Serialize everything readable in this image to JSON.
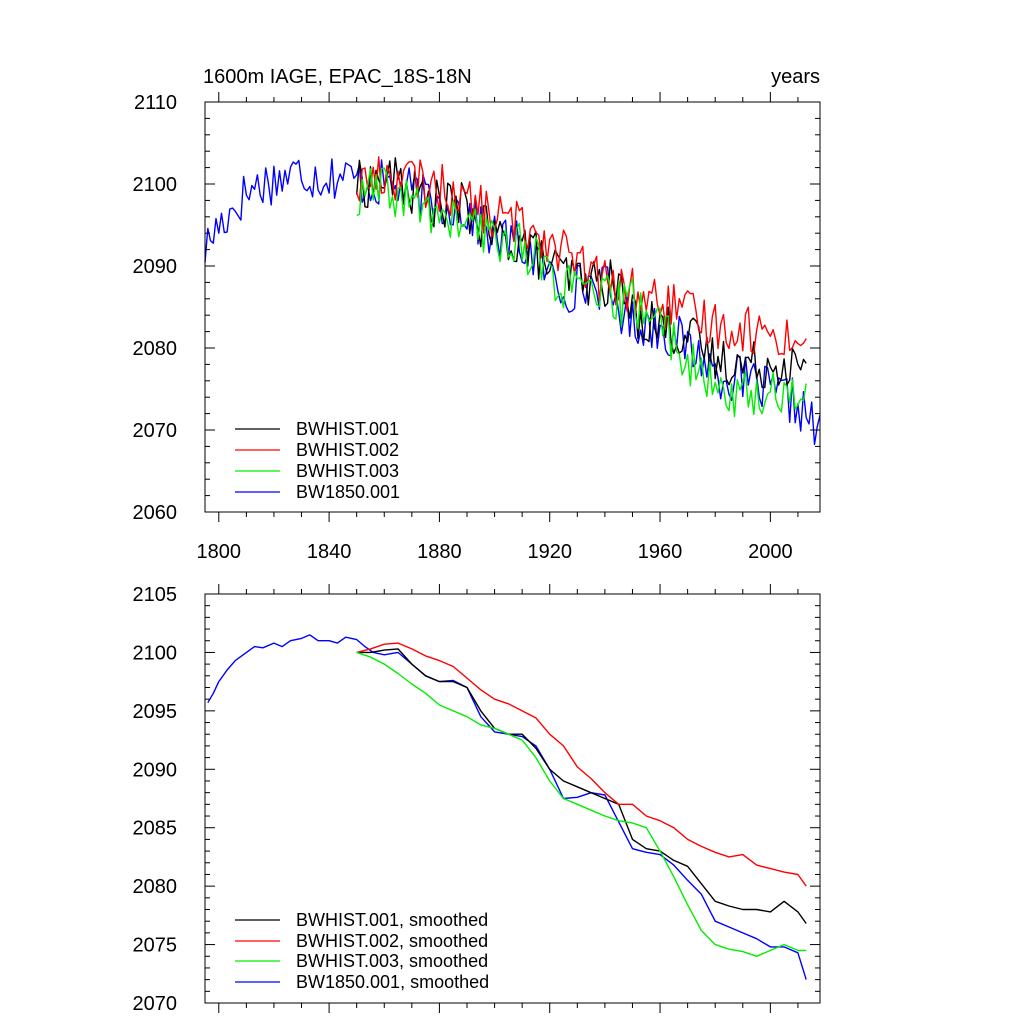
{
  "chart_data": [
    {
      "type": "line",
      "title_left": "1600m IAGE, EPAC_18S-18N",
      "title_right": "years",
      "xlim": [
        1795,
        2018
      ],
      "ylim": [
        2060,
        2110
      ],
      "xticks": [
        1800,
        1840,
        1880,
        1920,
        1960,
        2000
      ],
      "yticks": [
        2060,
        2070,
        2080,
        2090,
        2100,
        2110
      ],
      "legend_position": "lower-left",
      "series": [
        {
          "name": "BW1850.001",
          "color": "#0000ff",
          "x": [
            1795,
            1798,
            1800,
            1805,
            1810,
            1815,
            1820,
            1825,
            1830,
            1835,
            1840,
            1845,
            1850,
            1855,
            1860,
            1865,
            1870,
            1875,
            1880,
            1885,
            1890,
            1895,
            1900,
            1905,
            1910,
            1915,
            1920,
            1925,
            1930,
            1935,
            1940,
            1945,
            1950,
            1955,
            1960,
            1965,
            1970,
            1975,
            1980,
            1985,
            1990,
            1995,
            2000,
            2005,
            2010,
            2015,
            2018
          ],
          "y": [
            2092,
            2094,
            2095,
            2097,
            2099,
            2100,
            2100.5,
            2101,
            2101.5,
            2101,
            2101,
            2101,
            2100.5,
            2100,
            2100,
            2099.5,
            2099,
            2098,
            2097.5,
            2097.5,
            2096.5,
            2095,
            2093.5,
            2093,
            2092.5,
            2091,
            2089,
            2087,
            2087.5,
            2088,
            2087.5,
            2085,
            2083,
            2083,
            2082.5,
            2081.5,
            2080,
            2079,
            2077,
            2076.5,
            2076,
            2075.5,
            2074.5,
            2074,
            2073,
            2071,
            2069
          ]
        },
        {
          "name": "BWHIST.001",
          "color": "#000000",
          "x": [
            1850,
            1855,
            1860,
            1865,
            1870,
            1875,
            1880,
            1885,
            1890,
            1895,
            1900,
            1905,
            1910,
            1915,
            1920,
            1925,
            1930,
            1935,
            1940,
            1945,
            1950,
            1955,
            1960,
            1965,
            1970,
            1975,
            1980,
            1985,
            1990,
            1995,
            2000,
            2005,
            2010,
            2013
          ],
          "y": [
            2100,
            2100,
            2100.5,
            2100.5,
            2099,
            2098,
            2097.5,
            2097.5,
            2097,
            2095,
            2093.5,
            2093,
            2093,
            2091.5,
            2090,
            2089,
            2088.5,
            2088,
            2088,
            2087.5,
            2084,
            2083.5,
            2083,
            2082,
            2081.5,
            2080,
            2078.5,
            2078.5,
            2078,
            2078,
            2078,
            2078.5,
            2077.5,
            2076.5
          ]
        },
        {
          "name": "BWHIST.002",
          "color": "#ff0000",
          "x": [
            1850,
            1855,
            1860,
            1865,
            1870,
            1875,
            1880,
            1885,
            1890,
            1895,
            1900,
            1905,
            1910,
            1915,
            1920,
            1925,
            1930,
            1935,
            1940,
            1945,
            1950,
            1955,
            1960,
            1965,
            1970,
            1975,
            1980,
            1985,
            1990,
            1995,
            2000,
            2005,
            2010,
            2013
          ],
          "y": [
            2100,
            2100.5,
            2101,
            2101,
            2100.5,
            2100,
            2099.5,
            2099,
            2098,
            2097,
            2096,
            2095.5,
            2095,
            2094.5,
            2093,
            2092,
            2090,
            2089,
            2088,
            2087,
            2087,
            2086,
            2085.5,
            2085,
            2084,
            2083.5,
            2083,
            2082.5,
            2082.5,
            2082,
            2081.5,
            2081.5,
            2081,
            2080
          ]
        },
        {
          "name": "BWHIST.003",
          "color": "#00ee00",
          "x": [
            1850,
            1855,
            1860,
            1865,
            1870,
            1875,
            1880,
            1885,
            1890,
            1895,
            1900,
            1905,
            1910,
            1915,
            1920,
            1925,
            1930,
            1935,
            1940,
            1945,
            1950,
            1955,
            1960,
            1965,
            1970,
            1975,
            1980,
            1985,
            1990,
            1995,
            2000,
            2005,
            2010,
            2013
          ],
          "y": [
            2097,
            2099.5,
            2099,
            2098.5,
            2097.5,
            2097,
            2096,
            2095.5,
            2095,
            2094,
            2093.5,
            2093,
            2092.5,
            2091,
            2089,
            2087.5,
            2087,
            2086.5,
            2086,
            2085.5,
            2085.5,
            2085,
            2083,
            2081,
            2078.5,
            2076,
            2075,
            2074.5,
            2074.5,
            2074,
            2074.5,
            2074.5,
            2074.5,
            2075
          ]
        }
      ],
      "jitter_note_amplitude": 3,
      "legend_entries": [
        "BWHIST.001",
        "BWHIST.002",
        "BWHIST.003",
        "BW1850.001"
      ]
    },
    {
      "type": "line",
      "xlim": [
        1795,
        2018
      ],
      "ylim": [
        2070,
        2105
      ],
      "xticks": [
        1800,
        1840,
        1880,
        1920,
        1960,
        2000
      ],
      "yticks": [
        2070,
        2075,
        2080,
        2085,
        2090,
        2095,
        2100,
        2105
      ],
      "legend_position": "lower-left",
      "series": [
        {
          "name": "BW1850.001, smoothed",
          "color": "#0000ff",
          "x": [
            1796,
            1798,
            1800,
            1803,
            1806,
            1810,
            1813,
            1816,
            1820,
            1823,
            1826,
            1830,
            1833,
            1836,
            1840,
            1843,
            1846,
            1850,
            1853,
            1856,
            1860,
            1865,
            1870,
            1875,
            1880,
            1885,
            1890,
            1895,
            1900,
            1905,
            1910,
            1915,
            1920,
            1925,
            1930,
            1935,
            1940,
            1945,
            1950,
            1955,
            1960,
            1965,
            1970,
            1975,
            1980,
            1985,
            1990,
            1995,
            2000,
            2005,
            2010,
            2013
          ],
          "y": [
            2095.7,
            2096.5,
            2097.5,
            2098.5,
            2099.3,
            2100,
            2100.5,
            2100.4,
            2100.8,
            2100.5,
            2101,
            2101.2,
            2101.5,
            2101,
            2101,
            2100.8,
            2101.3,
            2101.1,
            2100.5,
            2100,
            2099.8,
            2100,
            2099,
            2098,
            2097.5,
            2097.6,
            2097,
            2094.5,
            2093.2,
            2093,
            2092.8,
            2092,
            2090,
            2087.5,
            2087.6,
            2088,
            2087.8,
            2085.5,
            2083.2,
            2082.9,
            2082.7,
            2081.8,
            2080.5,
            2079.3,
            2077,
            2076.5,
            2076,
            2075.5,
            2074.8,
            2074.8,
            2074.3,
            2072
          ]
        },
        {
          "name": "BWHIST.001, smoothed",
          "color": "#000000",
          "x": [
            1850,
            1855,
            1860,
            1865,
            1870,
            1875,
            1880,
            1885,
            1890,
            1895,
            1900,
            1905,
            1910,
            1915,
            1920,
            1925,
            1930,
            1935,
            1940,
            1945,
            1950,
            1955,
            1960,
            1965,
            1970,
            1975,
            1980,
            1985,
            1990,
            1995,
            2000,
            2005,
            2010,
            2013
          ],
          "y": [
            2100,
            2100,
            2100.2,
            2100.3,
            2099,
            2098,
            2097.5,
            2097.5,
            2097,
            2095,
            2093.5,
            2093,
            2093,
            2091.8,
            2090,
            2089,
            2088.5,
            2088,
            2087.5,
            2087,
            2084,
            2083.2,
            2083,
            2082.2,
            2081.7,
            2080.2,
            2078.7,
            2078.3,
            2078,
            2078,
            2077.8,
            2078.7,
            2077.8,
            2076.8
          ]
        },
        {
          "name": "BWHIST.002, smoothed",
          "color": "#ff0000",
          "x": [
            1850,
            1855,
            1860,
            1865,
            1870,
            1875,
            1880,
            1885,
            1890,
            1895,
            1900,
            1905,
            1910,
            1915,
            1920,
            1925,
            1930,
            1935,
            1940,
            1945,
            1950,
            1955,
            1960,
            1965,
            1970,
            1975,
            1980,
            1985,
            1990,
            1995,
            2000,
            2005,
            2010,
            2013
          ],
          "y": [
            2100,
            2100.3,
            2100.7,
            2100.8,
            2100.3,
            2099.7,
            2099.3,
            2098.8,
            2097.8,
            2096.8,
            2096,
            2095.6,
            2095,
            2094.4,
            2093,
            2092,
            2090.2,
            2089.2,
            2088,
            2087,
            2087,
            2086,
            2085.6,
            2085,
            2084,
            2083.4,
            2082.9,
            2082.5,
            2082.7,
            2081.8,
            2081.5,
            2081.2,
            2081,
            2080
          ]
        },
        {
          "name": "BWHIST.003, smoothed",
          "color": "#00ee00",
          "x": [
            1850,
            1855,
            1860,
            1865,
            1870,
            1875,
            1880,
            1885,
            1890,
            1895,
            1900,
            1905,
            1910,
            1915,
            1920,
            1925,
            1930,
            1935,
            1940,
            1945,
            1950,
            1955,
            1960,
            1965,
            1970,
            1975,
            1980,
            1985,
            1990,
            1995,
            2000,
            2005,
            2010,
            2013
          ],
          "y": [
            2100,
            2099.6,
            2099,
            2098.2,
            2097.3,
            2096.5,
            2095.5,
            2095,
            2094.5,
            2093.8,
            2093.5,
            2093,
            2092.5,
            2091,
            2089,
            2087.5,
            2087,
            2086.5,
            2086,
            2085.6,
            2085.4,
            2085,
            2083,
            2080.8,
            2078.4,
            2076.2,
            2075,
            2074.6,
            2074.4,
            2074,
            2074.5,
            2075,
            2074.5,
            2074.5
          ]
        }
      ],
      "legend_entries": [
        "BWHIST.001, smoothed",
        "BWHIST.002, smoothed",
        "BWHIST.003, smoothed",
        "BW1850.001, smoothed"
      ]
    }
  ]
}
